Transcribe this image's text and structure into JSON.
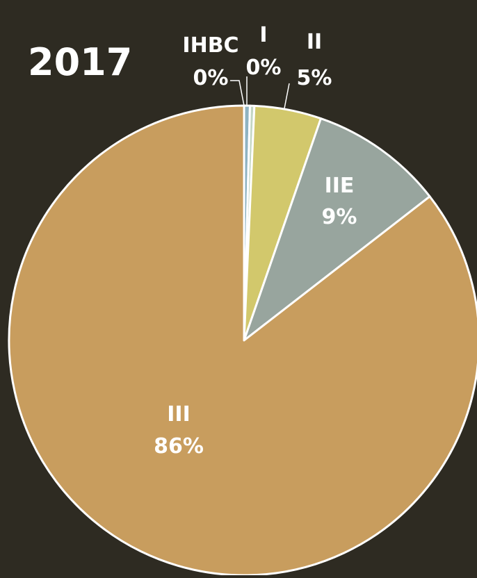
{
  "chart_data": {
    "type": "pie",
    "title": "2017",
    "slices": [
      {
        "label": "IHBC",
        "value": 0.4,
        "value_label": "0%",
        "color": "#8fb3c2"
      },
      {
        "label": "I",
        "value": 0.3,
        "value_label": "0%",
        "color": "#c3d6c4"
      },
      {
        "label": "II",
        "value": 4.6,
        "value_label": "5%",
        "color": "#d2c86c"
      },
      {
        "label": "IIE",
        "value": 9.2,
        "value_label": "9%",
        "color": "#98a59e"
      },
      {
        "label": "III",
        "value": 85.5,
        "value_label": "86%",
        "color": "#c89d5e"
      }
    ],
    "start_angle_deg": 0,
    "direction": "clockwise"
  }
}
